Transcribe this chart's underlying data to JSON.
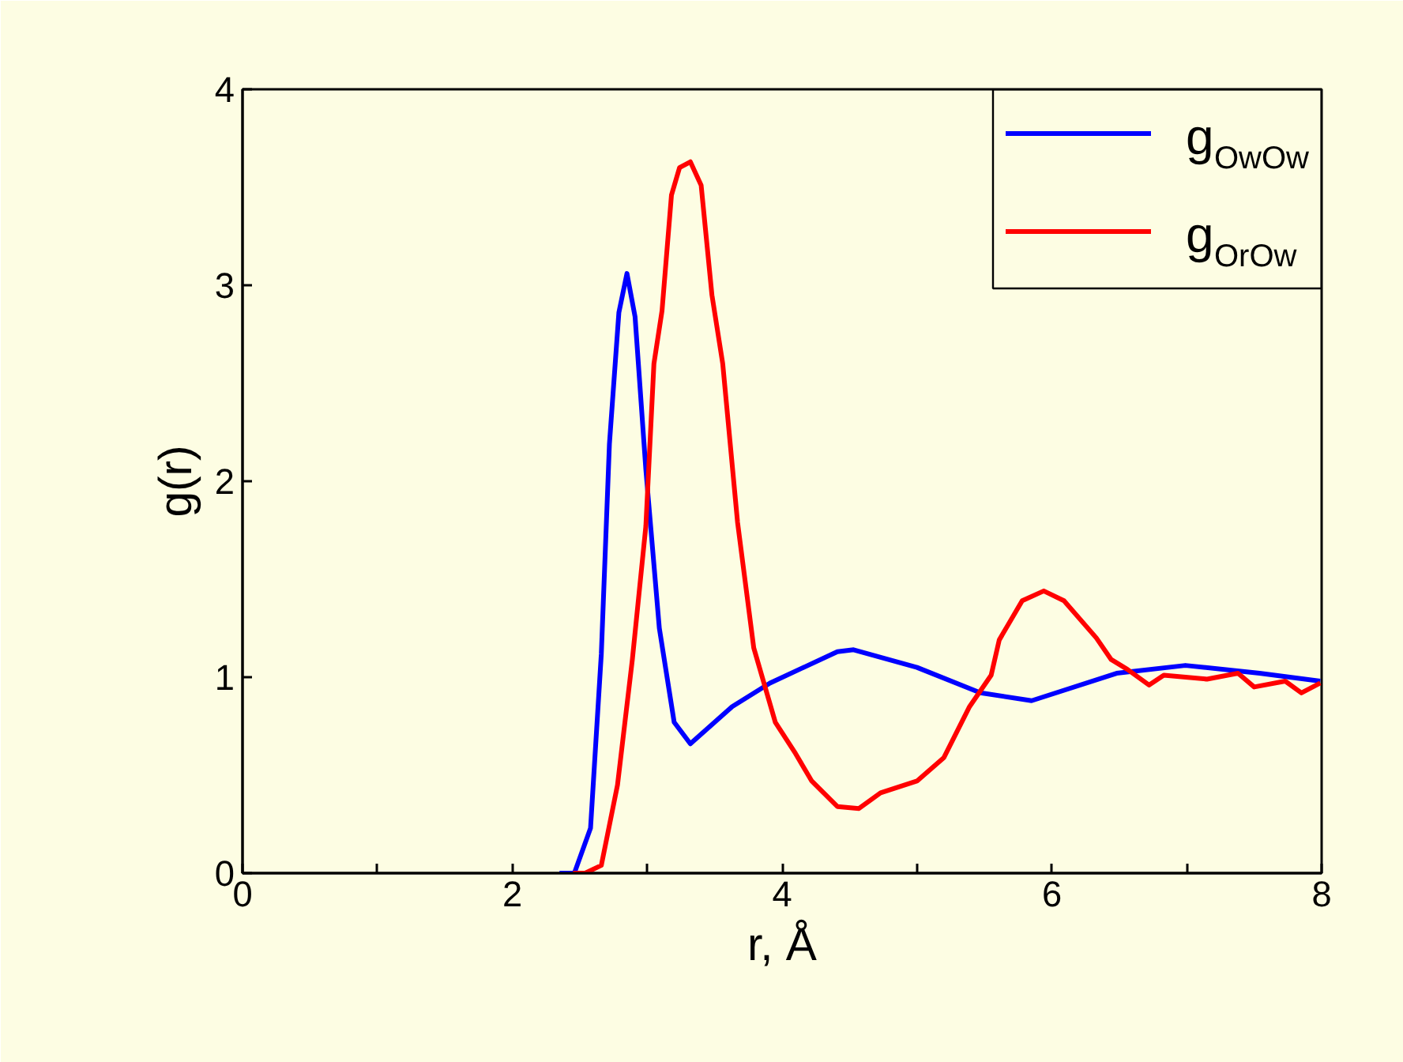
{
  "chart_data": {
    "type": "line",
    "xlabel": "r, Å",
    "ylabel": "g(r)",
    "xlim": [
      0,
      8
    ],
    "ylim": [
      0,
      4
    ],
    "xticks": [
      0,
      {
        "value": 1,
        "label": null
      },
      2,
      {
        "value": 3,
        "label": null
      },
      4,
      {
        "value": 5,
        "label": null
      },
      6,
      {
        "value": 7,
        "label": null
      },
      8
    ],
    "yticks": [
      0,
      1,
      2,
      3,
      4
    ],
    "grid": false,
    "legend": "top right",
    "marker": "none",
    "line_style": "solid",
    "series": [
      {
        "name": "g$_{OwOw}$",
        "color": "#0000ff",
        "x": [
          2.35,
          2.46,
          2.58,
          2.66,
          2.72,
          2.79,
          2.85,
          2.91,
          2.99,
          3.09,
          3.2,
          3.32,
          3.63,
          3.91,
          4.41,
          4.53,
          5.0,
          5.47,
          5.85,
          6.48,
          6.99,
          7.54,
          7.99
        ],
        "values": [
          0,
          0,
          0.23,
          1.12,
          2.19,
          2.86,
          3.06,
          2.84,
          2.06,
          1.25,
          0.77,
          0.66,
          0.85,
          0.97,
          1.13,
          1.14,
          1.05,
          0.92,
          0.88,
          1.02,
          1.06,
          1.02,
          0.98
        ]
      },
      {
        "name": "g$_{OrOw}$",
        "color": "#ff0000",
        "x": [
          2.45,
          2.54,
          2.66,
          2.78,
          2.89,
          2.99,
          3.05,
          3.11,
          3.18,
          3.24,
          3.32,
          3.4,
          3.48,
          3.56,
          3.67,
          3.79,
          3.95,
          4.1,
          4.22,
          4.41,
          4.57,
          4.73,
          5.0,
          5.2,
          5.39,
          5.55,
          5.61,
          5.78,
          5.94,
          6.09,
          6.33,
          6.44,
          6.56,
          6.72,
          6.83,
          7.15,
          7.38,
          7.5,
          7.73,
          7.85,
          7.99
        ],
        "values": [
          0,
          0,
          0.04,
          0.45,
          1.09,
          1.77,
          2.6,
          2.87,
          3.46,
          3.6,
          3.63,
          3.51,
          2.95,
          2.6,
          1.79,
          1.15,
          0.77,
          0.61,
          0.47,
          0.34,
          0.33,
          0.41,
          0.47,
          0.59,
          0.85,
          1.01,
          1.19,
          1.39,
          1.44,
          1.39,
          1.2,
          1.09,
          1.04,
          0.96,
          1.01,
          0.99,
          1.02,
          0.95,
          0.98,
          0.92,
          0.97
        ]
      }
    ]
  }
}
